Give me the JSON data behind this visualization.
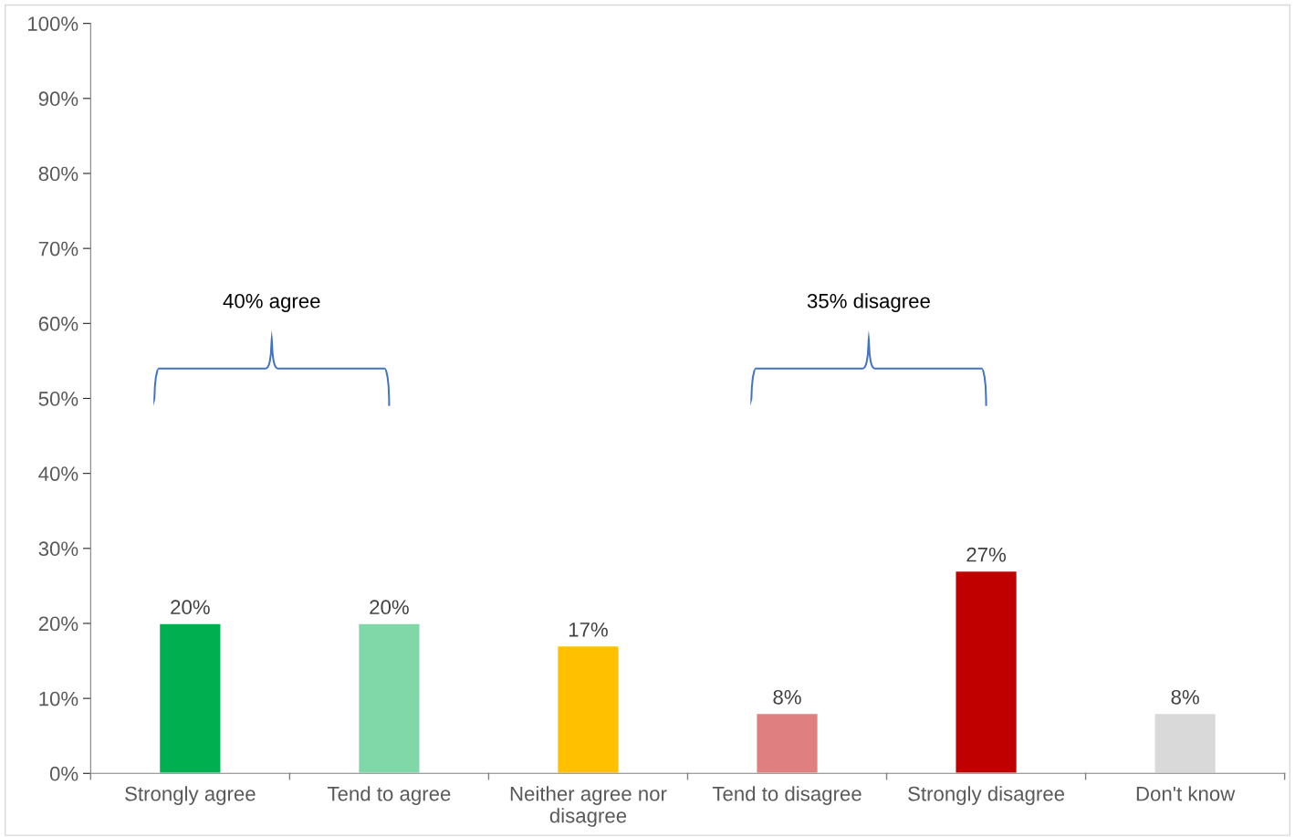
{
  "chart_data": {
    "type": "bar",
    "categories": [
      "Strongly agree",
      "Tend to agree",
      "Neither agree nor\ndisagree",
      "Tend to disagree",
      "Strongly disagree",
      "Don't know"
    ],
    "values": [
      20,
      20,
      17,
      8,
      27,
      8
    ],
    "colors": [
      "#00b050",
      "#80d8a8",
      "#ffc000",
      "#e07f7f",
      "#c00000",
      "#d9d9d9"
    ],
    "value_labels": [
      "20%",
      "20%",
      "17%",
      "8%",
      "27%",
      "8%"
    ],
    "ylim": [
      0,
      100
    ],
    "yticks": [
      {
        "value": 0,
        "label": "0%"
      },
      {
        "value": 10,
        "label": "10%"
      },
      {
        "value": 20,
        "label": "20%"
      },
      {
        "value": 30,
        "label": "30%"
      },
      {
        "value": 40,
        "label": "40%"
      },
      {
        "value": 50,
        "label": "50%"
      },
      {
        "value": 60,
        "label": "60%"
      },
      {
        "value": 70,
        "label": "70%"
      },
      {
        "value": 80,
        "label": "80%"
      },
      {
        "value": 90,
        "label": "90%"
      },
      {
        "value": 100,
        "label": "100%"
      }
    ],
    "annotations": [
      "40% agree",
      "35% disagree"
    ],
    "grid": false,
    "legend": false
  }
}
